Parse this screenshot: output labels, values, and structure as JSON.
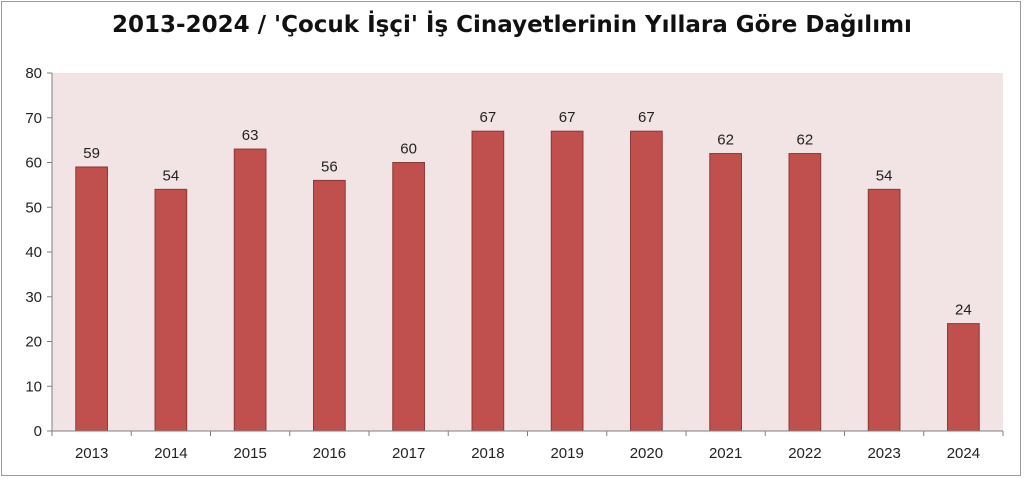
{
  "chart_data": {
    "type": "bar",
    "title": "2013-2024 / 'Çocuk İşçi' İş Cinayetlerinin Yıllara Göre Dağılımı",
    "categories": [
      "2013",
      "2014",
      "2015",
      "2016",
      "2017",
      "2018",
      "2019",
      "2020",
      "2021",
      "2022",
      "2023",
      "2024"
    ],
    "values": [
      59,
      54,
      63,
      56,
      60,
      67,
      67,
      67,
      62,
      62,
      54,
      24
    ],
    "ylim": [
      0,
      80
    ],
    "yticks": [
      0,
      10,
      20,
      30,
      40,
      50,
      60,
      70,
      80
    ],
    "grid": false,
    "legend": "none",
    "colors": {
      "bar": "#C0504D",
      "bar_edge": "#8C3836",
      "plot_bg": "#F2E4E4",
      "axis": "#7f7f7f"
    }
  }
}
